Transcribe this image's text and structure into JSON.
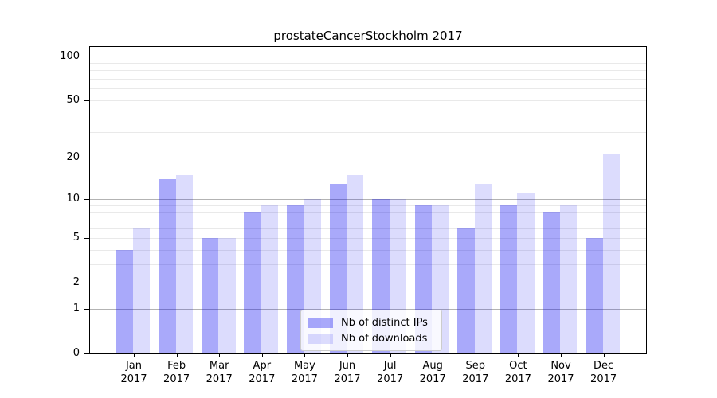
{
  "chart_data": {
    "type": "bar",
    "title": "prostateCancerStockholm 2017",
    "categories": [
      "Jan",
      "Feb",
      "Mar",
      "Apr",
      "May",
      "Jun",
      "Jul",
      "Aug",
      "Sep",
      "Oct",
      "Nov",
      "Dec"
    ],
    "category_year": "2017",
    "series": [
      {
        "name": "Nb of distinct IPs",
        "color": "rgba(10, 10, 240, 0.35)",
        "values": [
          4,
          14,
          5,
          8,
          9,
          13,
          10,
          9,
          6,
          9,
          8,
          5
        ]
      },
      {
        "name": "Nb of downloads",
        "color": "rgba(10, 10, 240, 0.14)",
        "values": [
          6,
          15,
          5,
          9,
          10,
          15,
          10,
          9,
          13,
          11,
          9,
          21
        ]
      }
    ],
    "xlabel": "",
    "ylabel": "",
    "y_axis": {
      "scale": "log1p",
      "tick_labels": [
        "100",
        "50",
        "20",
        "10",
        "5",
        "2",
        "1",
        "0"
      ],
      "tick_values": [
        100,
        50,
        20,
        10,
        5,
        2,
        1,
        0
      ],
      "major_gridline_values": [
        1,
        10,
        100
      ],
      "minor_gridline_values": [
        2,
        3,
        4,
        5,
        6,
        7,
        8,
        9,
        20,
        30,
        40,
        50,
        60,
        70,
        80,
        90
      ],
      "ylim": [
        0,
        115
      ]
    },
    "grid": true,
    "legend_position": "lower center"
  },
  "colors": {
    "grid_major": "#b3b3b3",
    "grid_minor": "#e9e9e9",
    "spine": "#000000",
    "text": "#000000",
    "legend_border": "#cccccc"
  }
}
